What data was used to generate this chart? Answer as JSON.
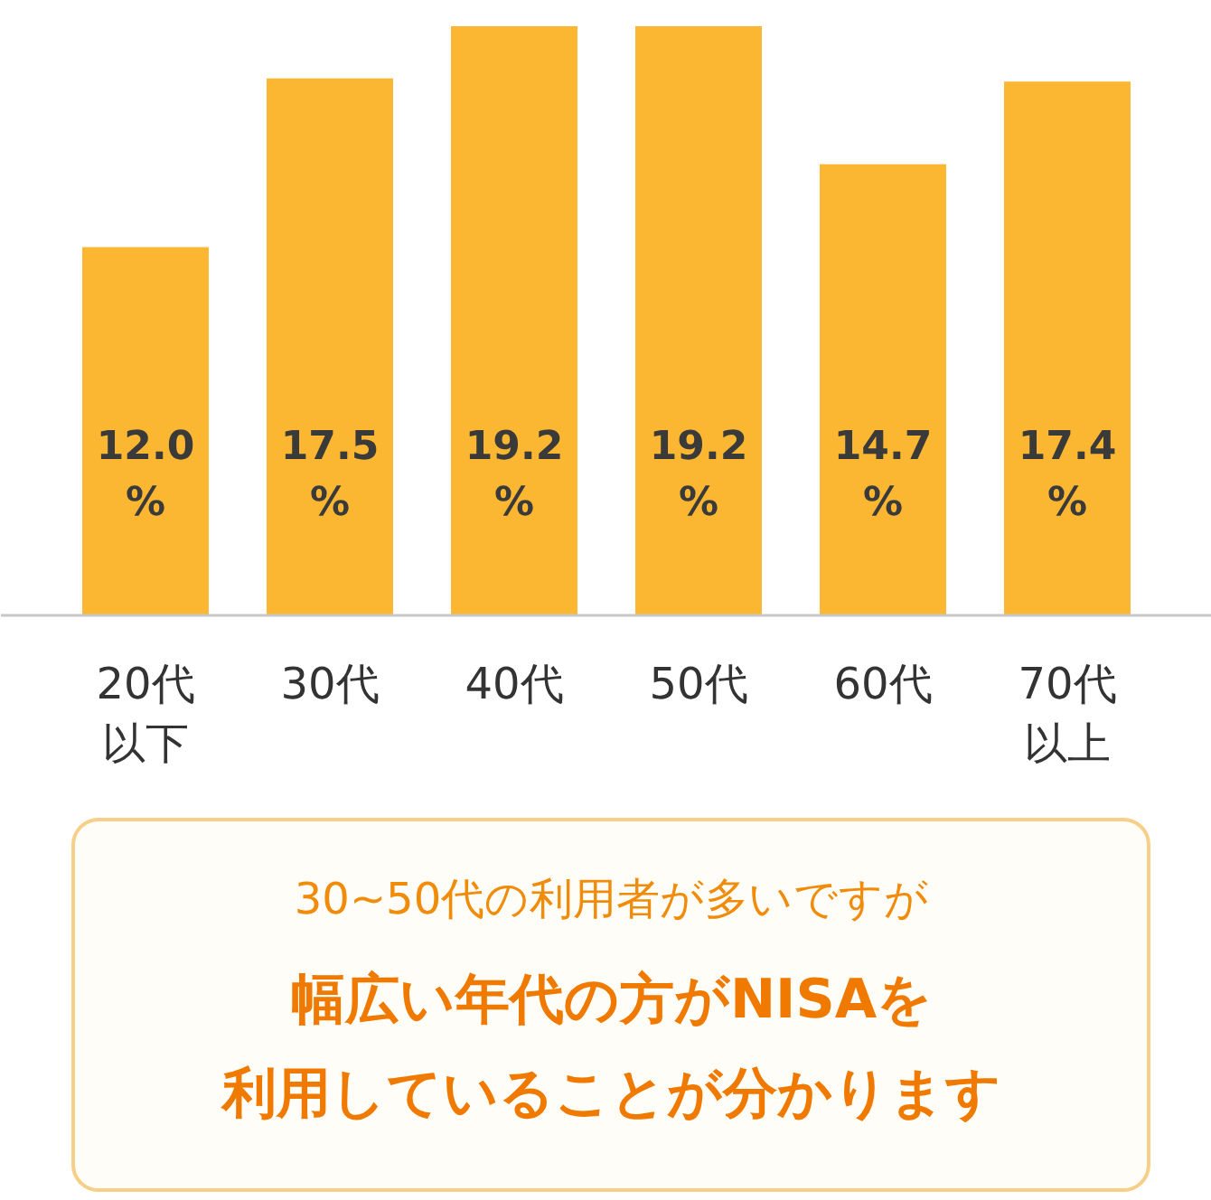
{
  "chart_data": {
    "type": "bar",
    "categories": [
      "20代以下",
      "30代",
      "40代",
      "50代",
      "60代",
      "70代以上"
    ],
    "values": [
      12.0,
      17.5,
      19.2,
      19.2,
      14.7,
      17.4
    ],
    "value_labels": [
      "12.0%",
      "17.5%",
      "19.2%",
      "19.2%",
      "14.7%",
      "17.4%"
    ],
    "color": "#fbb731",
    "annotations": [
      "30~50代の利用者が多いですが",
      "幅広い年代の方がNISAを",
      "利用していることが分かります"
    ]
  }
}
